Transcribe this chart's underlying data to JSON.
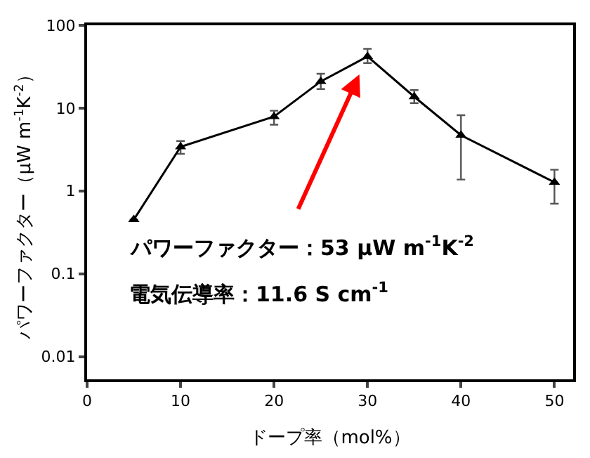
{
  "chart_data": {
    "type": "line",
    "xlabel": "ドープ率（mol%）",
    "ylabel": "パワーファクター（µW m$^{-1}$K$^{-2}$）",
    "x": [
      5,
      10,
      20,
      25,
      30,
      35,
      40,
      50
    ],
    "series": [
      {
        "color": "#000000",
        "values": [
          0.45,
          3.4,
          7.9,
          21,
          42,
          13.7,
          4.7,
          1.27
        ],
        "errors": [
          null,
          [
            2.8,
            4.0
          ],
          [
            6.3,
            9.3
          ],
          [
            17,
            26
          ],
          [
            35,
            52
          ],
          [
            11.5,
            16.5
          ],
          [
            1.37,
            8.2
          ],
          [
            0.7,
            1.8
          ]
        ]
      }
    ],
    "xlim": [
      0,
      52
    ],
    "xticks": [
      0,
      10,
      20,
      30,
      40,
      50
    ],
    "ylim": [
      0.0053,
      100
    ],
    "yticks": [
      0.01,
      0.1,
      1,
      10,
      100
    ],
    "log": "y",
    "grid": false,
    "legend": false,
    "marker": "triangle",
    "line_style": "solid",
    "annotations": [
      {
        "text": "パワーファクター：53 µW m$^{-1}$K$^{-2}$",
        "x": 30,
        "y": 42
      },
      "電気伝導率：11.6 S cm$^{-1}$"
    ]
  }
}
